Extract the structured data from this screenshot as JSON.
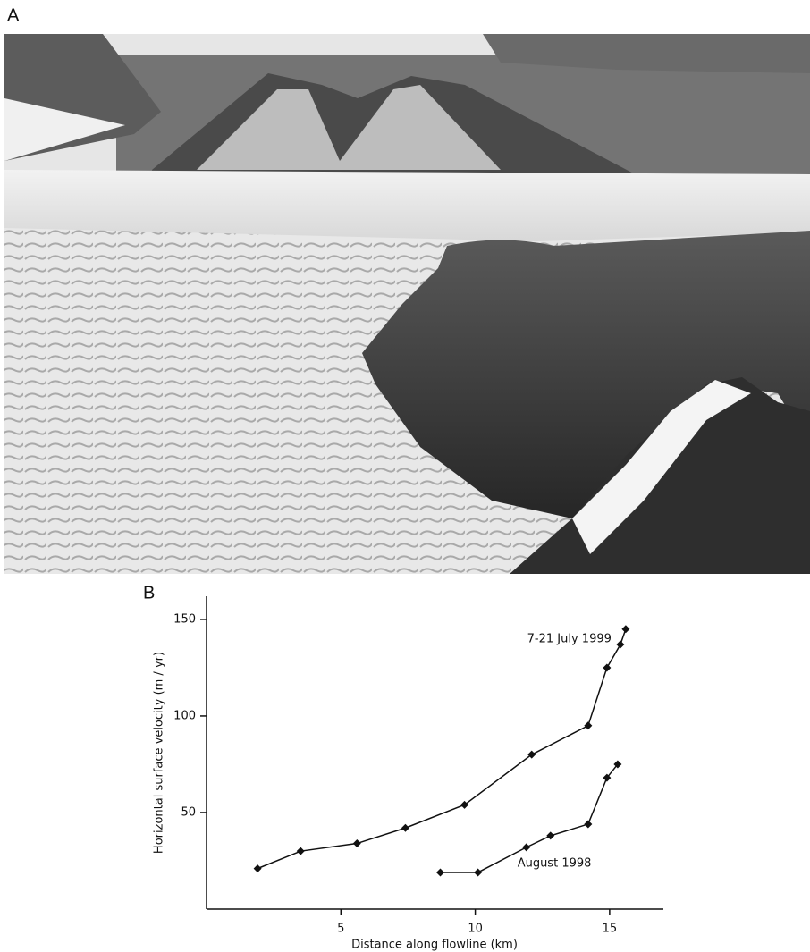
{
  "panel_labels": [
    "A",
    "B"
  ],
  "chart_data": {
    "type": "line",
    "xlabel": "Distance along flowline (km)",
    "ylabel": "Horizontal surface velocity (m / yr)",
    "xlim": [
      0,
      17
    ],
    "ylim": [
      0,
      162
    ],
    "xticks": [
      5,
      10,
      15
    ],
    "yticks": [
      50,
      100,
      150
    ],
    "grid": false,
    "marker": "diamond",
    "series": [
      {
        "name": "7-21 July 1999",
        "color": "#111111",
        "x": [
          1.9,
          3.5,
          5.6,
          7.4,
          9.6,
          12.1,
          14.2,
          14.9,
          15.4,
          15.6
        ],
        "values": [
          21,
          30,
          34,
          42,
          54,
          80,
          95,
          125,
          137,
          145
        ]
      },
      {
        "name": "August 1998",
        "color": "#111111",
        "x": [
          8.7,
          10.1,
          11.9,
          12.8,
          14.2,
          14.9,
          15.3
        ],
        "values": [
          19,
          19,
          32,
          38,
          44,
          68,
          75
        ]
      }
    ]
  }
}
